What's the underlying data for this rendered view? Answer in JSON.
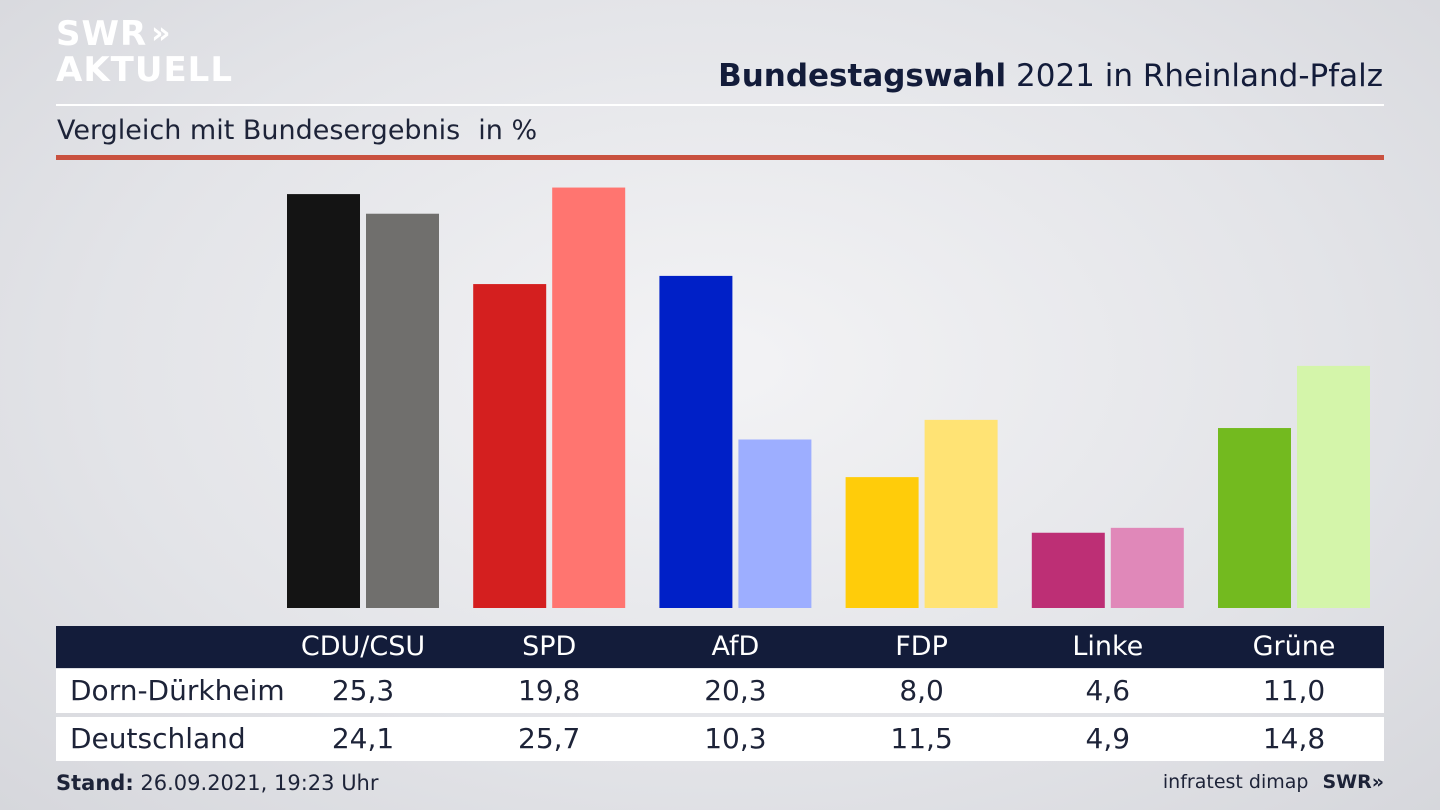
{
  "logo": {
    "line1": "SWR",
    "chevrons": "»",
    "line2": "AKTUELL"
  },
  "header": {
    "title_bold": "Bundestagswahl",
    "title_rest": "2021 in Rheinland-Pfalz"
  },
  "subtitle": {
    "text": "Vergleich mit Bundesergebnis",
    "unit": "in %"
  },
  "chart_data": {
    "type": "bar",
    "categories": [
      "CDU/CSU",
      "SPD",
      "AfD",
      "FDP",
      "Linke",
      "Grüne"
    ],
    "series": [
      {
        "name": "Dorn-Dürkheim",
        "values": [
          25.3,
          19.8,
          20.3,
          8.0,
          4.6,
          11.0
        ]
      },
      {
        "name": "Deutschland",
        "values": [
          24.1,
          25.7,
          10.3,
          11.5,
          4.9,
          14.8
        ]
      }
    ],
    "value_labels": [
      [
        "25,3",
        "19,8",
        "20,3",
        "8,0",
        "4,6",
        "11,0"
      ],
      [
        "24,1",
        "25,7",
        "10,3",
        "11,5",
        "4,9",
        "14,8"
      ]
    ],
    "colors": [
      [
        "#141414",
        "#706f6d"
      ],
      [
        "#d41f1f",
        "#ff7570"
      ],
      [
        "#0020c7",
        "#9daeff"
      ],
      [
        "#ffcc0a",
        "#ffe374"
      ],
      [
        "#bd2f75",
        "#e088b9"
      ],
      [
        "#73ba1f",
        "#d4f5aa"
      ]
    ],
    "ylim": [
      0,
      26
    ],
    "grid": false,
    "legend": "table-below"
  },
  "footer": {
    "stand_label": "Stand:",
    "stand_value": "26.09.2021, 19:23 Uhr",
    "source": "infratest dimap",
    "brand": "SWR»"
  }
}
